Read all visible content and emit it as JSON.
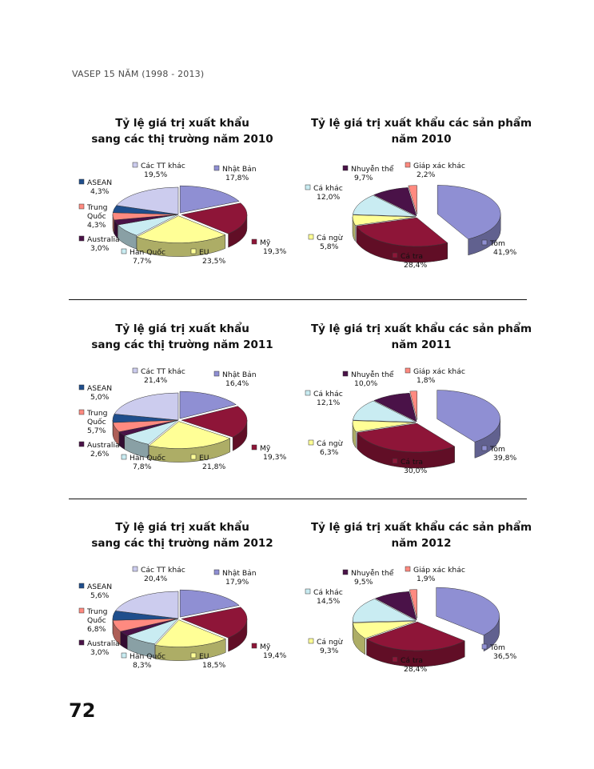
{
  "header": "VASEP 15 NĂM (1998 - 2013)",
  "page_number": "72",
  "colors": {
    "nhat_ban": "#8f8fd3",
    "my": "#8e1538",
    "eu": "#ffff96",
    "han_quoc": "#c9ecf2",
    "australia": "#4a1248",
    "trung_quoc": "#ff8a80",
    "asean": "#1f4e8c",
    "cac_tt_khac": "#ccccee",
    "tom": "#8f8fd3",
    "ca_tra": "#8e1538",
    "ca_ngu": "#ffff96",
    "ca_khac": "#c9ecf2",
    "nhuyen_the": "#4a1248",
    "giap_xac_khac": "#ff8a80"
  },
  "chart_data": [
    {
      "type": "pie",
      "title": [
        "Tỷ lệ giá trị xuất khẩu",
        "sang các thị trường năm 2010"
      ],
      "slices": [
        {
          "name": "Nhật Bản",
          "value": 17.8,
          "label": "17,8%",
          "color": "#8f8fd3"
        },
        {
          "name": "Mỹ",
          "value": 19.3,
          "label": "19,3%",
          "color": "#8e1538"
        },
        {
          "name": "EU",
          "value": 23.5,
          "label": "23,5%",
          "color": "#ffff96"
        },
        {
          "name": "Hàn Quốc",
          "value": 7.7,
          "label": "7,7%",
          "color": "#c9ecf2"
        },
        {
          "name": "Australia",
          "value": 3.0,
          "label": "3,0%",
          "color": "#4a1248"
        },
        {
          "name": "Trung Quốc",
          "value": 4.3,
          "label": "4,3%",
          "color": "#ff8a80"
        },
        {
          "name": "ASEAN",
          "value": 4.3,
          "label": "4,3%",
          "color": "#1f4e8c"
        },
        {
          "name": "Các TT khác",
          "value": 19.5,
          "label": "19,5%",
          "color": "#ccccee"
        }
      ]
    },
    {
      "type": "pie",
      "title": [
        "Tỷ lệ giá trị xuất khẩu các sản phẩm",
        "năm 2010"
      ],
      "slices": [
        {
          "name": "Tôm",
          "value": 41.9,
          "label": "41,9%",
          "color": "#8f8fd3"
        },
        {
          "name": "Cá tra",
          "value": 28.4,
          "label": "28,4%",
          "color": "#8e1538"
        },
        {
          "name": "Cá ngừ",
          "value": 5.8,
          "label": "5,8%",
          "color": "#ffff96"
        },
        {
          "name": "Cá khác",
          "value": 12.0,
          "label": "12,0%",
          "color": "#c9ecf2"
        },
        {
          "name": "Nhuyễn thể",
          "value": 9.7,
          "label": "9,7%",
          "color": "#4a1248"
        },
        {
          "name": "Giáp xác khác",
          "value": 2.2,
          "label": "2,2%",
          "color": "#ff8a80"
        }
      ]
    },
    {
      "type": "pie",
      "title": [
        "Tỷ lệ giá trị xuất khẩu",
        "sang các thị trường năm 2011"
      ],
      "slices": [
        {
          "name": "Nhật Bản",
          "value": 16.4,
          "label": "16,4%",
          "color": "#8f8fd3"
        },
        {
          "name": "Mỹ",
          "value": 19.3,
          "label": "19,3%",
          "color": "#8e1538"
        },
        {
          "name": "EU",
          "value": 21.8,
          "label": "21,8%",
          "color": "#ffff96"
        },
        {
          "name": "Hàn Quốc",
          "value": 7.8,
          "label": "7,8%",
          "color": "#c9ecf2"
        },
        {
          "name": "Australia",
          "value": 2.6,
          "label": "2,6%",
          "color": "#4a1248"
        },
        {
          "name": "Trung Quốc",
          "value": 5.7,
          "label": "5,7%",
          "color": "#ff8a80"
        },
        {
          "name": "ASEAN",
          "value": 5.0,
          "label": "5,0%",
          "color": "#1f4e8c"
        },
        {
          "name": "Các TT khác",
          "value": 21.4,
          "label": "21,4%",
          "color": "#ccccee"
        }
      ]
    },
    {
      "type": "pie",
      "title": [
        "Tỷ lệ giá trị xuất khẩu các sản phẩm",
        "năm 2011"
      ],
      "slices": [
        {
          "name": "Tôm",
          "value": 39.8,
          "label": "39,8%",
          "color": "#8f8fd3"
        },
        {
          "name": "Cá tra",
          "value": 30.0,
          "label": "30,0%",
          "color": "#8e1538"
        },
        {
          "name": "Cá ngừ",
          "value": 6.3,
          "label": "6,3%",
          "color": "#ffff96"
        },
        {
          "name": "Cá khác",
          "value": 12.1,
          "label": "12,1%",
          "color": "#c9ecf2"
        },
        {
          "name": "Nhuyễn thể",
          "value": 10.0,
          "label": "10,0%",
          "color": "#4a1248"
        },
        {
          "name": "Giáp xác khác",
          "value": 1.8,
          "label": "1,8%",
          "color": "#ff8a80"
        }
      ]
    },
    {
      "type": "pie",
      "title": [
        "Tỷ lệ giá trị xuất khẩu",
        "sang các thị trường năm 2012"
      ],
      "slices": [
        {
          "name": "Nhật Bản",
          "value": 17.9,
          "label": "17,9%",
          "color": "#8f8fd3"
        },
        {
          "name": "Mỹ",
          "value": 19.4,
          "label": "19,4%",
          "color": "#8e1538"
        },
        {
          "name": "EU",
          "value": 18.5,
          "label": "18,5%",
          "color": "#ffff96"
        },
        {
          "name": "Hàn Quốc",
          "value": 8.3,
          "label": "8,3%",
          "color": "#c9ecf2"
        },
        {
          "name": "Australia",
          "value": 3.0,
          "label": "3,0%",
          "color": "#4a1248"
        },
        {
          "name": "Trung Quốc",
          "value": 6.8,
          "label": "6,8%",
          "color": "#ff8a80"
        },
        {
          "name": "ASEAN",
          "value": 5.6,
          "label": "5,6%",
          "color": "#1f4e8c"
        },
        {
          "name": "Các TT khác",
          "value": 20.4,
          "label": "20,4%",
          "color": "#ccccee"
        }
      ]
    },
    {
      "type": "pie",
      "title": [
        "Tỷ lệ giá trị xuất khẩu các sản phẩm",
        "năm 2012"
      ],
      "slices": [
        {
          "name": "Tôm",
          "value": 36.5,
          "label": "36,5%",
          "color": "#8f8fd3"
        },
        {
          "name": "Cá tra",
          "value": 28.4,
          "label": "28,4%",
          "color": "#8e1538"
        },
        {
          "name": "Cá ngừ",
          "value": 9.3,
          "label": "9,3%",
          "color": "#ffff96"
        },
        {
          "name": "Cá khác",
          "value": 14.5,
          "label": "14,5%",
          "color": "#c9ecf2"
        },
        {
          "name": "Nhuyễn thể",
          "value": 9.5,
          "label": "9,5%",
          "color": "#4a1248"
        },
        {
          "name": "Giáp xác khác",
          "value": 1.9,
          "label": "1,9%",
          "color": "#ff8a80"
        }
      ]
    }
  ]
}
